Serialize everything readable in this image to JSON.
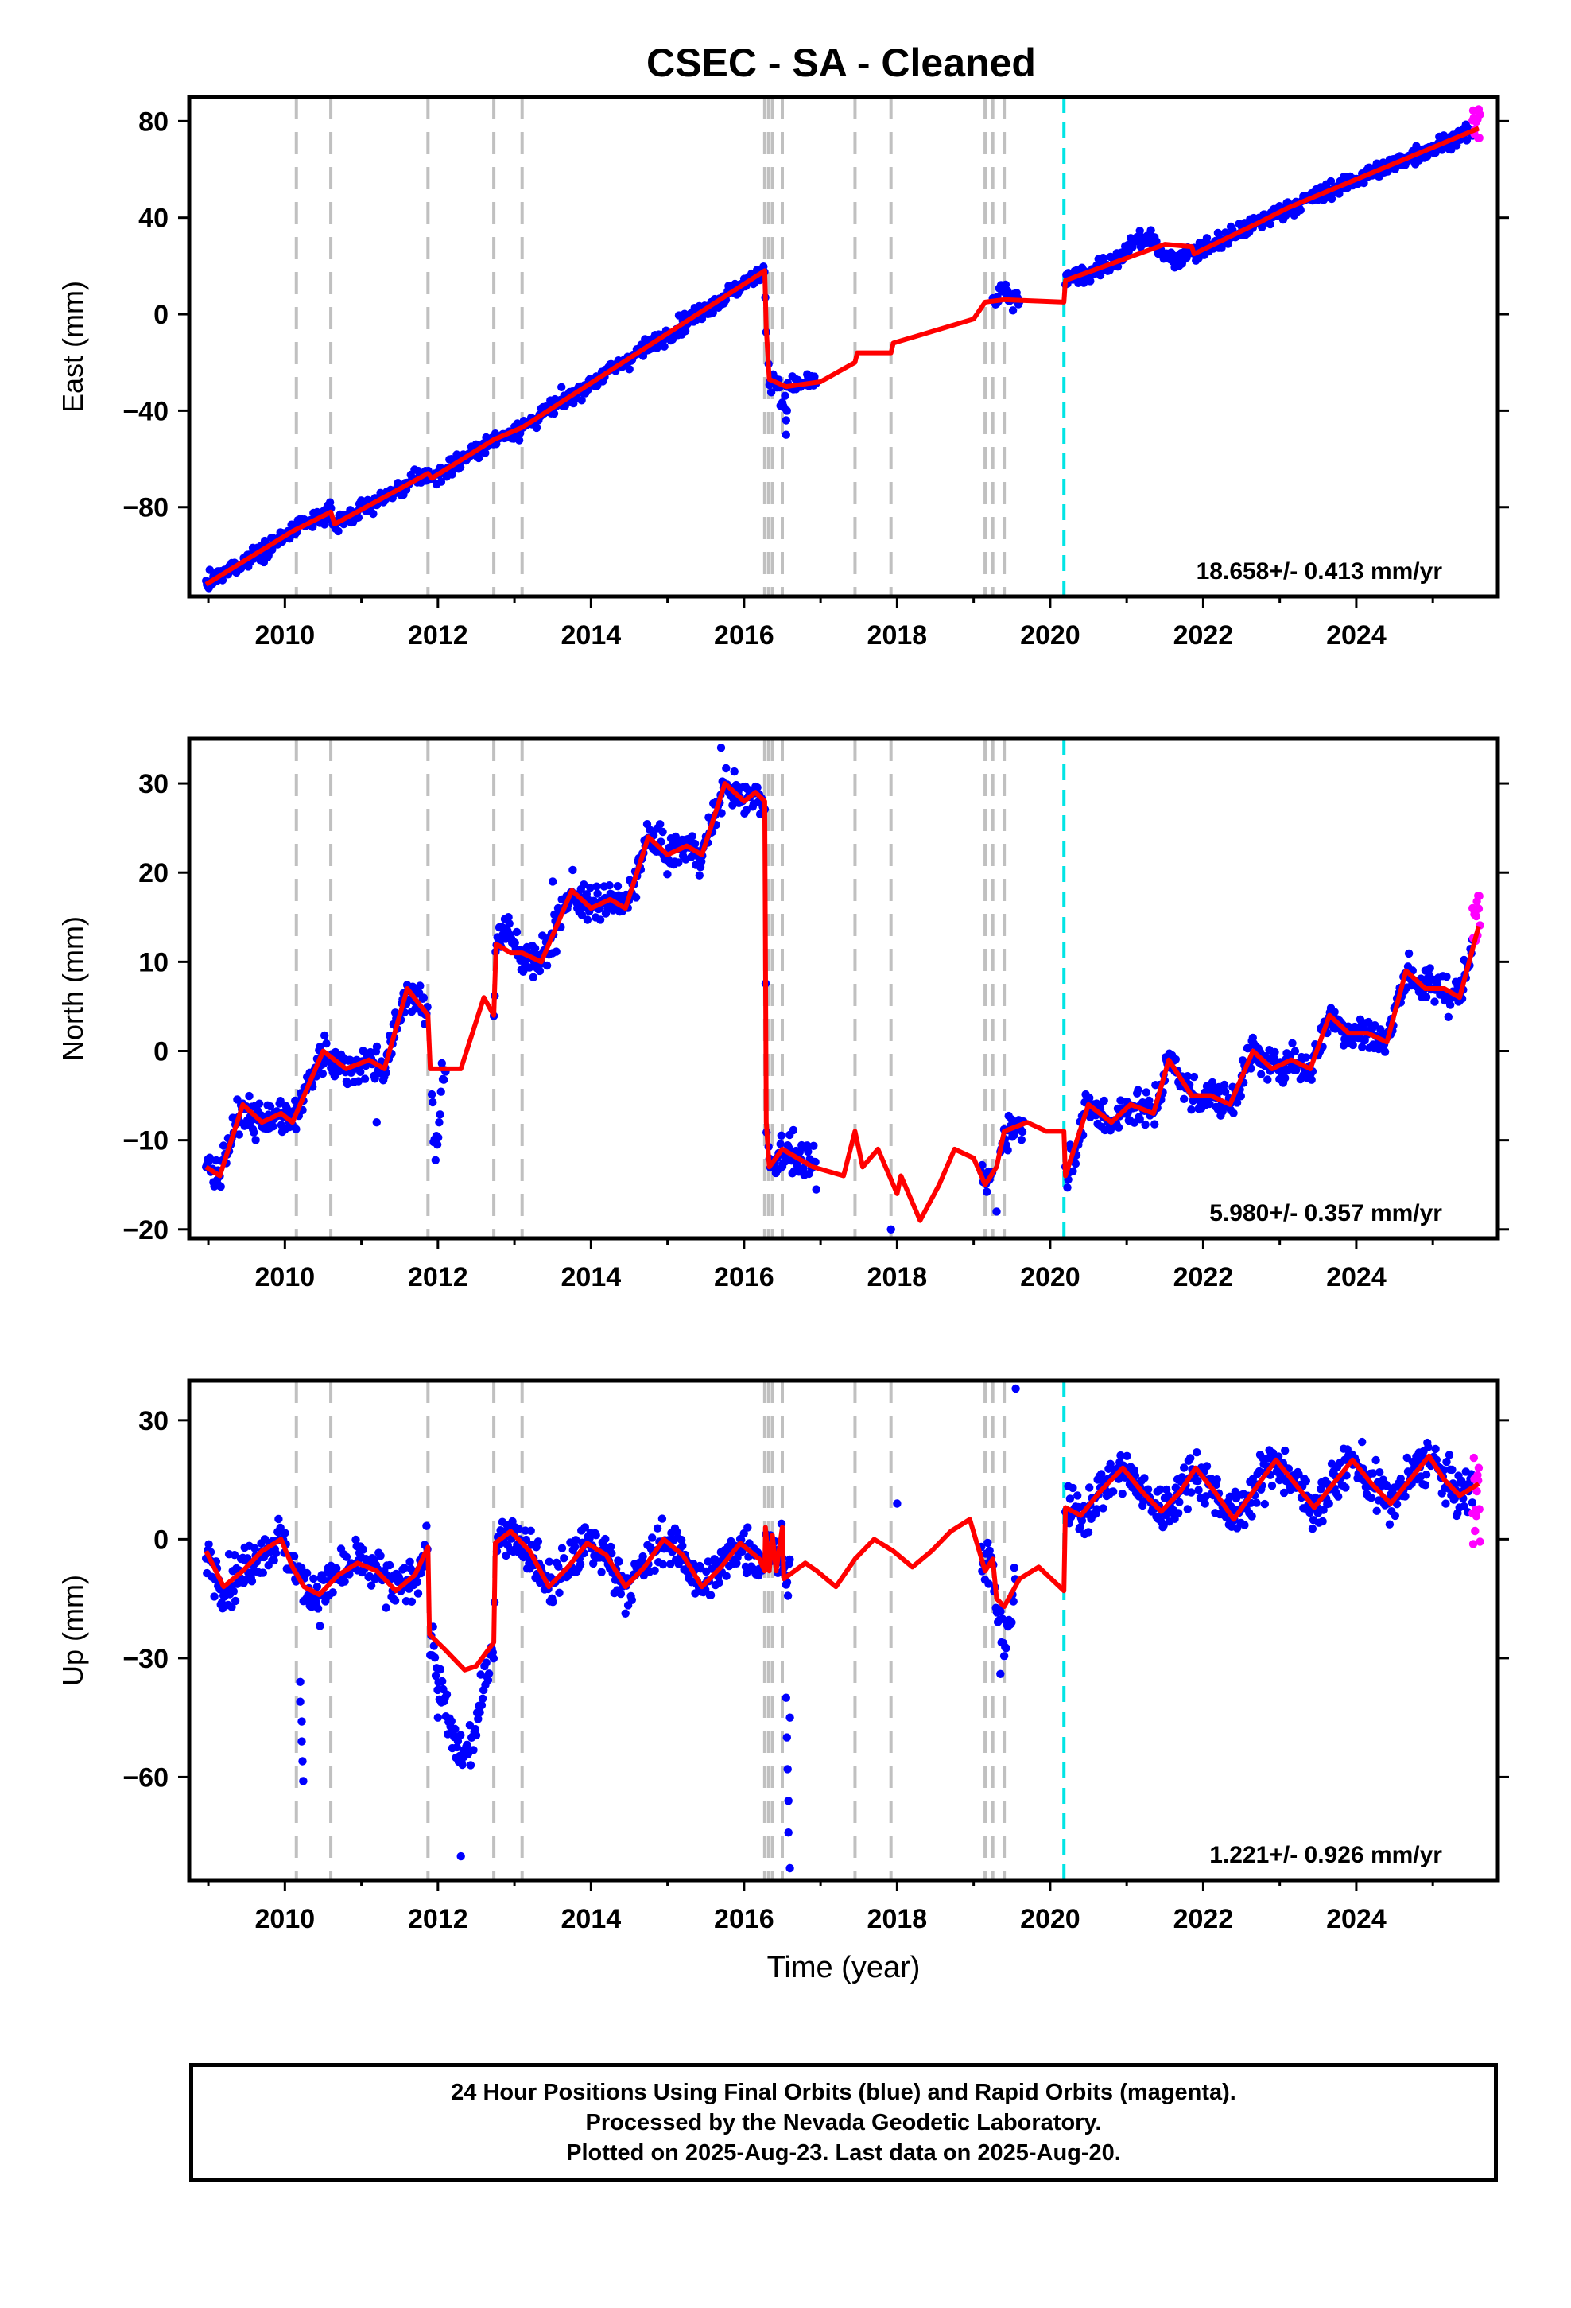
{
  "chart_data": {
    "type": "scatter",
    "title": "CSEC  - SA - Cleaned",
    "xlabel": "Time (year)",
    "x_ticks": [
      2010,
      2012,
      2014,
      2016,
      2018,
      2020,
      2022,
      2024
    ],
    "xlim": [
      2008.75,
      2025.85
    ],
    "colors": {
      "final_orbits": "#0000ff",
      "rapid_orbits": "#ff00ff",
      "model": "#ff0000",
      "event_lines": "#c0c0c0",
      "equipment_line": "#00e5e5"
    },
    "event_lines": [
      2010.15,
      2010.6,
      2011.87,
      2012.73,
      2013.1,
      2016.27,
      2016.32,
      2016.37,
      2016.5,
      2017.45,
      2017.92,
      2019.15,
      2019.25,
      2019.4
    ],
    "cyan_line": 2020.18,
    "panels": [
      {
        "name": "East",
        "ylabel": "East (mm)",
        "ylim": [
          -117,
          90
        ],
        "y_ticks": [
          80,
          40,
          0,
          -40,
          -80
        ],
        "rate": "18.658+/- 0.413 mm/yr",
        "model": [
          [
            2008.97,
            -112
          ],
          [
            2010.1,
            -90
          ],
          [
            2010.6,
            -82
          ],
          [
            2010.65,
            -87
          ],
          [
            2011.87,
            -66
          ],
          [
            2011.92,
            -68
          ],
          [
            2012.73,
            -52
          ],
          [
            2013.1,
            -47
          ],
          [
            2016.27,
            18
          ],
          [
            2016.29,
            -6
          ],
          [
            2016.33,
            -27
          ],
          [
            2016.55,
            -30
          ],
          [
            2017.0,
            -28
          ],
          [
            2017.45,
            -20
          ],
          [
            2017.48,
            -16
          ],
          [
            2017.92,
            -16
          ],
          [
            2017.95,
            -12
          ],
          [
            2019.0,
            -2
          ],
          [
            2019.15,
            5
          ],
          [
            2019.4,
            6
          ],
          [
            2020.18,
            5
          ],
          [
            2020.2,
            14
          ],
          [
            2021.5,
            29
          ],
          [
            2021.85,
            28
          ],
          [
            2021.88,
            25
          ],
          [
            2022.73,
            38
          ],
          [
            2023.1,
            44
          ],
          [
            2025.6,
            77
          ]
        ],
        "noise": 2.5,
        "segments": [
          [
            2008.97,
            2016.3
          ],
          [
            2016.32,
            2016.95
          ],
          [
            2019.25,
            2019.6
          ],
          [
            2020.2,
            2025.52
          ]
        ],
        "deviations": [
          [
            2020.9,
            2021.4,
            6
          ],
          [
            2021.4,
            2021.85,
            -6
          ],
          [
            2016.45,
            2016.55,
            -10
          ],
          [
            2019.3,
            2019.45,
            5
          ]
        ],
        "outliers": [
          [
            2016.55,
            -44
          ],
          [
            2016.55,
            -50
          ],
          [
            2016.56,
            -40
          ]
        ],
        "rapid": [
          2025.52,
          2025.62,
          73,
          85
        ]
      },
      {
        "name": "North",
        "ylabel": "North (mm)",
        "ylim": [
          -21,
          35
        ],
        "y_ticks": [
          30,
          20,
          10,
          0,
          -10,
          -20
        ],
        "rate": "5.980+/- 0.357 mm/yr",
        "model": [
          [
            2008.97,
            -13
          ],
          [
            2009.15,
            -14
          ],
          [
            2009.45,
            -6
          ],
          [
            2009.7,
            -8
          ],
          [
            2009.95,
            -7
          ],
          [
            2010.1,
            -8
          ],
          [
            2010.5,
            0
          ],
          [
            2010.8,
            -2
          ],
          [
            2011.1,
            -1
          ],
          [
            2011.3,
            -2
          ],
          [
            2011.6,
            7
          ],
          [
            2011.87,
            4
          ],
          [
            2011.9,
            -2
          ],
          [
            2012.3,
            -2
          ],
          [
            2012.6,
            6
          ],
          [
            2012.73,
            4
          ],
          [
            2012.76,
            12
          ],
          [
            2012.95,
            11
          ],
          [
            2013.1,
            11
          ],
          [
            2013.35,
            10
          ],
          [
            2013.75,
            18
          ],
          [
            2014.0,
            16
          ],
          [
            2014.25,
            17
          ],
          [
            2014.45,
            16
          ],
          [
            2014.75,
            24
          ],
          [
            2015.0,
            22
          ],
          [
            2015.25,
            23
          ],
          [
            2015.45,
            22
          ],
          [
            2015.75,
            30
          ],
          [
            2016.0,
            28
          ],
          [
            2016.15,
            29
          ],
          [
            2016.27,
            28
          ],
          [
            2016.29,
            -8
          ],
          [
            2016.33,
            -13
          ],
          [
            2016.5,
            -11
          ],
          [
            2016.9,
            -13
          ],
          [
            2017.3,
            -14
          ],
          [
            2017.45,
            -9
          ],
          [
            2017.55,
            -13
          ],
          [
            2017.75,
            -11
          ],
          [
            2018.0,
            -16
          ],
          [
            2018.05,
            -14
          ],
          [
            2018.3,
            -19
          ],
          [
            2018.55,
            -15
          ],
          [
            2018.75,
            -11
          ],
          [
            2019.0,
            -12
          ],
          [
            2019.15,
            -15
          ],
          [
            2019.3,
            -13
          ],
          [
            2019.4,
            -9
          ],
          [
            2019.7,
            -8
          ],
          [
            2019.95,
            -9
          ],
          [
            2020.18,
            -9
          ],
          [
            2020.2,
            -14
          ],
          [
            2020.5,
            -6
          ],
          [
            2020.8,
            -8
          ],
          [
            2021.05,
            -6
          ],
          [
            2021.35,
            -7
          ],
          [
            2021.55,
            -1
          ],
          [
            2021.85,
            -5
          ],
          [
            2022.1,
            -5
          ],
          [
            2022.35,
            -6
          ],
          [
            2022.65,
            0
          ],
          [
            2022.9,
            -2
          ],
          [
            2023.15,
            -1
          ],
          [
            2023.4,
            -2
          ],
          [
            2023.65,
            4
          ],
          [
            2023.9,
            2
          ],
          [
            2024.15,
            2
          ],
          [
            2024.4,
            1
          ],
          [
            2024.65,
            9
          ],
          [
            2024.9,
            7
          ],
          [
            2025.15,
            7
          ],
          [
            2025.35,
            6
          ],
          [
            2025.6,
            14
          ]
        ],
        "noise": 1.4,
        "segments": [
          [
            2008.97,
            2011.87
          ],
          [
            2011.92,
            2012.1
          ],
          [
            2012.73,
            2016.3
          ],
          [
            2016.32,
            2016.95
          ],
          [
            2019.1,
            2019.25
          ],
          [
            2019.35,
            2019.65
          ],
          [
            2020.2,
            2025.52
          ]
        ],
        "deviations": [
          [
            2011.9,
            2012.05,
            -9
          ],
          [
            2012.75,
            2013.05,
            2
          ]
        ],
        "outliers": [
          [
            2017.92,
            -20
          ],
          [
            2019.3,
            -18
          ],
          [
            2011.2,
            -8
          ],
          [
            2013.5,
            19
          ],
          [
            2015.7,
            34
          ]
        ],
        "rapid": [
          2025.52,
          2025.62,
          12,
          17.5
        ]
      },
      {
        "name": "Up",
        "ylabel": "Up (mm)",
        "ylim": [
          -86,
          40
        ],
        "y_ticks": [
          30,
          0,
          -30,
          -60
        ],
        "rate": "1.221+/- 0.926 mm/yr",
        "model": [
          [
            2008.97,
            -3
          ],
          [
            2009.2,
            -12
          ],
          [
            2009.45,
            -8
          ],
          [
            2009.7,
            -3
          ],
          [
            2009.95,
            0
          ],
          [
            2010.1,
            -7
          ],
          [
            2010.25,
            -12
          ],
          [
            2010.45,
            -14
          ],
          [
            2010.7,
            -9
          ],
          [
            2010.95,
            -6
          ],
          [
            2011.2,
            -8
          ],
          [
            2011.45,
            -13
          ],
          [
            2011.7,
            -9
          ],
          [
            2011.87,
            -2
          ],
          [
            2011.89,
            -24
          ],
          [
            2012.1,
            -28
          ],
          [
            2012.35,
            -33
          ],
          [
            2012.5,
            -32
          ],
          [
            2012.73,
            -26
          ],
          [
            2012.75,
            -1
          ],
          [
            2012.95,
            2
          ],
          [
            2013.2,
            -3
          ],
          [
            2013.45,
            -12
          ],
          [
            2013.7,
            -7
          ],
          [
            2013.95,
            -1
          ],
          [
            2014.2,
            -4
          ],
          [
            2014.45,
            -12
          ],
          [
            2014.7,
            -7
          ],
          [
            2014.95,
            0
          ],
          [
            2015.2,
            -4
          ],
          [
            2015.45,
            -12
          ],
          [
            2015.7,
            -7
          ],
          [
            2015.95,
            -1
          ],
          [
            2016.2,
            -5
          ],
          [
            2016.27,
            -8
          ],
          [
            2016.28,
            3
          ],
          [
            2016.33,
            -8
          ],
          [
            2016.37,
            1
          ],
          [
            2016.42,
            -8
          ],
          [
            2016.5,
            3
          ],
          [
            2016.52,
            -10
          ],
          [
            2016.8,
            -6
          ],
          [
            2016.95,
            -8
          ],
          [
            2017.2,
            -12
          ],
          [
            2017.45,
            -5
          ],
          [
            2017.7,
            0
          ],
          [
            2017.95,
            -3
          ],
          [
            2018.2,
            -7
          ],
          [
            2018.45,
            -3
          ],
          [
            2018.7,
            2
          ],
          [
            2018.95,
            5
          ],
          [
            2019.15,
            -8
          ],
          [
            2019.25,
            -5
          ],
          [
            2019.3,
            -15
          ],
          [
            2019.4,
            -17
          ],
          [
            2019.6,
            -10
          ],
          [
            2019.85,
            -7
          ],
          [
            2020.18,
            -13
          ],
          [
            2020.2,
            8
          ],
          [
            2020.4,
            6
          ],
          [
            2020.65,
            12
          ],
          [
            2020.95,
            18
          ],
          [
            2021.2,
            12
          ],
          [
            2021.45,
            7
          ],
          [
            2021.7,
            12
          ],
          [
            2021.9,
            18
          ],
          [
            2022.15,
            12
          ],
          [
            2022.4,
            5
          ],
          [
            2022.65,
            12
          ],
          [
            2022.95,
            20
          ],
          [
            2023.2,
            14
          ],
          [
            2023.45,
            8
          ],
          [
            2023.7,
            14
          ],
          [
            2023.95,
            20
          ],
          [
            2024.2,
            14
          ],
          [
            2024.45,
            9
          ],
          [
            2024.7,
            15
          ],
          [
            2024.95,
            21
          ],
          [
            2025.15,
            15
          ],
          [
            2025.35,
            11
          ],
          [
            2025.6,
            14
          ]
        ],
        "noise": 4.0,
        "segments": [
          [
            2008.97,
            2011.87
          ],
          [
            2011.9,
            2012.75
          ],
          [
            2012.77,
            2016.6
          ],
          [
            2019.1,
            2019.55
          ],
          [
            2020.2,
            2025.52
          ]
        ],
        "deviations": [
          [
            2011.9,
            2012.7,
            -22
          ],
          [
            2019.25,
            2019.55,
            -8
          ]
        ],
        "outliers": [
          [
            2010.2,
            -36
          ],
          [
            2010.2,
            -41
          ],
          [
            2010.22,
            -46
          ],
          [
            2010.22,
            -51
          ],
          [
            2010.23,
            -56
          ],
          [
            2010.24,
            -61
          ],
          [
            2016.55,
            -40
          ],
          [
            2016.56,
            -50
          ],
          [
            2016.57,
            -58
          ],
          [
            2016.58,
            -66
          ],
          [
            2016.58,
            -74
          ],
          [
            2016.6,
            -83
          ],
          [
            2012.0,
            -45
          ],
          [
            2012.3,
            -80
          ],
          [
            2016.6,
            -45
          ],
          [
            2019.55,
            38
          ],
          [
            2018.0,
            9
          ],
          [
            2019.35,
            -34
          ]
        ],
        "rapid": [
          2025.52,
          2025.62,
          -4,
          22
        ]
      }
    ]
  },
  "footer": {
    "line1": "24 Hour Positions Using Final Orbits (blue) and Rapid Orbits (magenta).",
    "line2": "Processed by the Nevada Geodetic Laboratory.",
    "line3": "Plotted on 2025-Aug-23. Last data on 2025-Aug-20."
  }
}
